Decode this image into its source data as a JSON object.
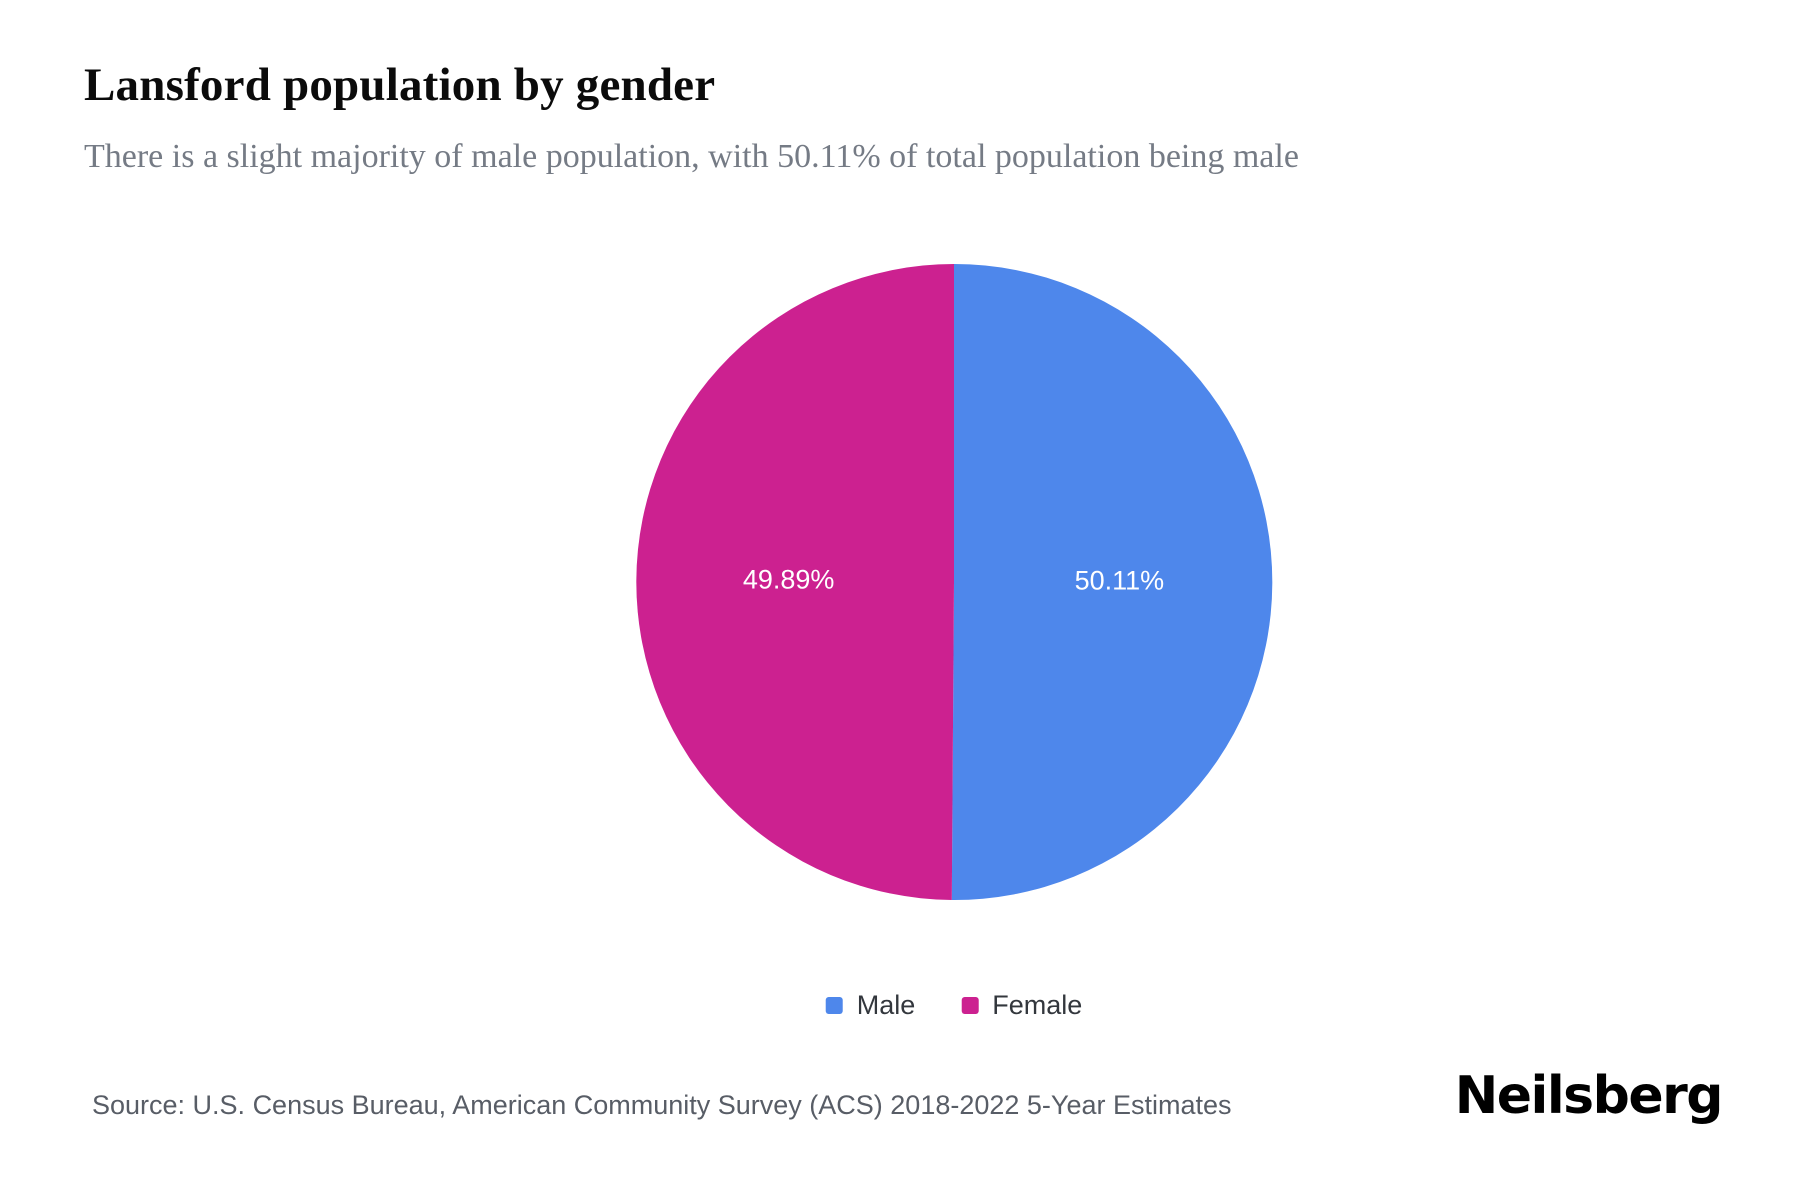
{
  "header": {
    "title": "Lansford population by gender",
    "subtitle": "There is a slight majority of male population, with 50.11% of total population being male"
  },
  "chart_data": {
    "type": "pie",
    "title": "Lansford population by gender",
    "categories": [
      "Male",
      "Female"
    ],
    "values": [
      50.11,
      49.89
    ],
    "series": [
      {
        "label": "Male",
        "value": 50.11,
        "percent_label": "50.11%",
        "color": "#4E87EB"
      },
      {
        "label": "Female",
        "value": 49.89,
        "percent_label": "49.89%",
        "color": "#CC2190"
      }
    ],
    "start_angle": "top",
    "direction": "clockwise",
    "data_label_color": "#ffffff",
    "legend_position": "bottom"
  },
  "footer": {
    "source": "Source: U.S. Census Bureau, American Community Survey (ACS) 2018-2022 5-Year Estimates",
    "brand": "Neilsberg"
  }
}
